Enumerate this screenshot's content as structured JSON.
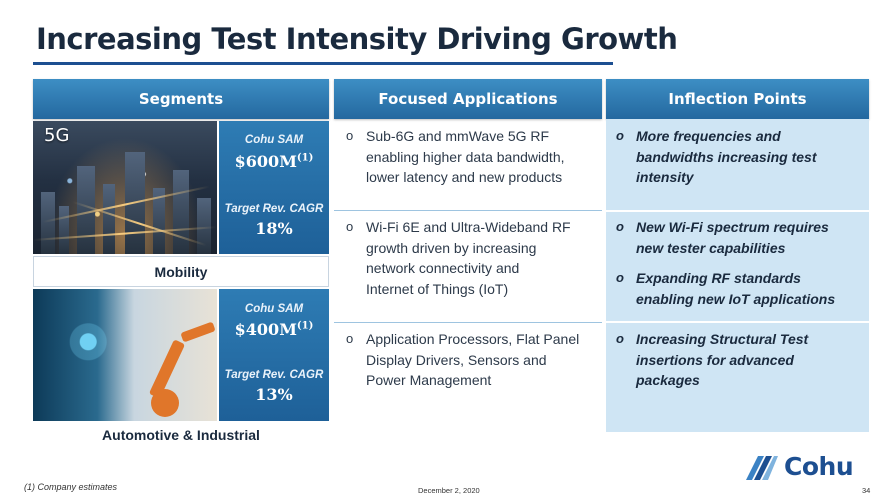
{
  "title": "Increasing Test Intensity Driving Growth",
  "columns": {
    "segments": "Segments",
    "focused": "Focused Applications",
    "inflection": "Inflection Points"
  },
  "segments": [
    {
      "image_label": "5G",
      "sam_label": "Cohu SAM",
      "sam_value": "$600M",
      "sam_note": "(1)",
      "cagr_label": "Target Rev. CAGR",
      "cagr_value": "18%",
      "name": "Mobility"
    },
    {
      "sam_label": "Cohu SAM",
      "sam_value": "$400M",
      "sam_note": "(1)",
      "cagr_label": "Target Rev. CAGR",
      "cagr_value": "13%",
      "name": "Automotive & Industrial"
    }
  ],
  "focused_applications": [
    "Sub-6G and mmWave 5G RF\nenabling higher data bandwidth,\nlower latency and new products",
    "Wi-Fi 6E and Ultra-Wideband RF\ngrowth driven by increasing\nnetwork connectivity and\nInternet of Things (IoT)",
    "Application Processors, Flat Panel\nDisplay Drivers, Sensors and\nPower Management"
  ],
  "inflection_points": [
    "More frequencies and\nbandwidths increasing test\nintensity",
    "New Wi-Fi spectrum requires\nnew tester capabilities",
    "Expanding RF standards\nenabling new IoT applications",
    "Increasing Structural Test\ninsertions for advanced\npackages"
  ],
  "bullet_mark": "o",
  "footer": {
    "footnote": "(1)  Company estimates",
    "date": "December 2, 2020",
    "page": "34",
    "logo": "Cohu"
  },
  "colors": {
    "header_blue": "#2e7cb4",
    "title_rule": "#1d4f91",
    "inflection_bg": "#cfe5f4",
    "logo_blue": "#1d4f91"
  }
}
